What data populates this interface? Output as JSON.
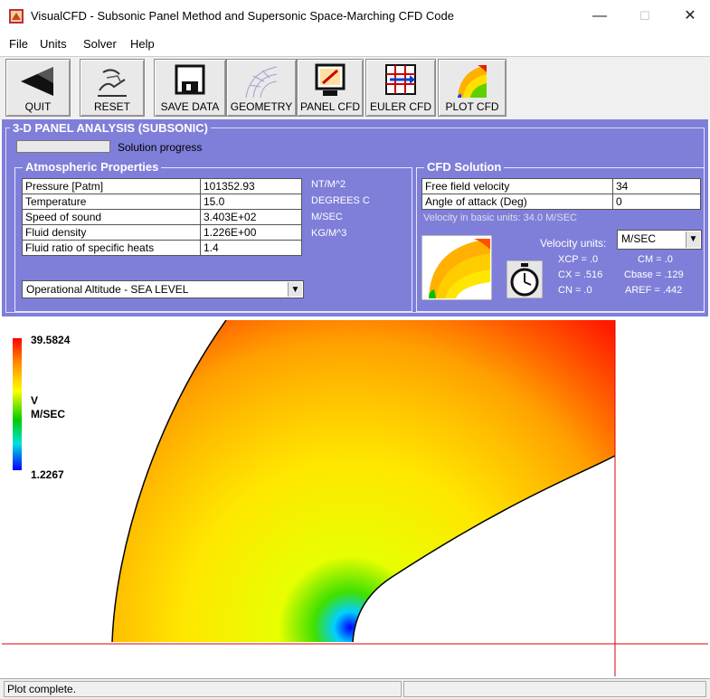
{
  "window": {
    "title": "VisualCFD - Subsonic Panel Method and Supersonic Space-Marching CFD Code",
    "minimize": "—",
    "maximize": "☐",
    "close": "✕"
  },
  "menu": [
    {
      "label": "File"
    },
    {
      "label": "Units"
    },
    {
      "label": "Solver"
    },
    {
      "label": "Help"
    }
  ],
  "toolbar": {
    "quit": "QUIT",
    "reset": "RESET",
    "save_data": "SAVE DATA",
    "geometry": "GEOMETRY",
    "panel_cfd": "PANEL CFD",
    "euler_cfd": "EULER CFD",
    "plot_cfd": "PLOT CFD"
  },
  "panel": {
    "title": "3-D PANEL ANALYSIS (SUBSONIC)",
    "progress_label": "Solution progress",
    "progress_fraction": 0.0
  },
  "atmos": {
    "title": "Atmospheric Properties",
    "rows": [
      {
        "label": "Pressure [Patm]",
        "value": "101352.93",
        "unit": "NT/M^2"
      },
      {
        "label": "Temperature",
        "value": "15.0",
        "unit": "DEGREES C"
      },
      {
        "label": "Speed of sound",
        "value": "3.403E+02",
        "unit": "M/SEC"
      },
      {
        "label": "Fluid density",
        "value": "1.226E+00",
        "unit": "KG/M^3"
      },
      {
        "label": "Fluid ratio of specific heats",
        "value": "1.4",
        "unit": ""
      }
    ],
    "altitude": "Operational Altitude - SEA LEVEL"
  },
  "cfd": {
    "title": "CFD Solution",
    "rows": [
      {
        "label": "Free field velocity",
        "value": "34"
      },
      {
        "label": "Angle of attack (Deg)",
        "value": "0"
      }
    ],
    "velocity_basic": "Velocity in basic units: 34.0 M/SEC",
    "velocity_units_label": "Velocity units:",
    "velocity_units_value": "M/SEC",
    "xcp": "XCP = .0",
    "cm": "CM = .0",
    "cx": "CX = .516",
    "cbase": "Cbase = .129",
    "cn": "CN = .0",
    "aref": "AREF = .442"
  },
  "plot": {
    "max_label": "39.5824",
    "var_label": "V",
    "unit_label": "M/SEC",
    "min_label": "1.2267"
  },
  "status": {
    "text": "Plot complete."
  },
  "icons": {
    "quit": "back-arrow-icon",
    "reset": "hand-reset-icon",
    "save_data": "floppy-disk-icon",
    "geometry": "grid-geometry-icon",
    "panel_cfd": "monitor-pencil-icon",
    "euler_cfd": "grid-arrow-icon",
    "plot_cfd": "contour-plot-icon",
    "timer": "stopwatch-icon"
  },
  "colors": {
    "panel_bg": "#7f7fd9",
    "axis_line": "#e00000"
  }
}
